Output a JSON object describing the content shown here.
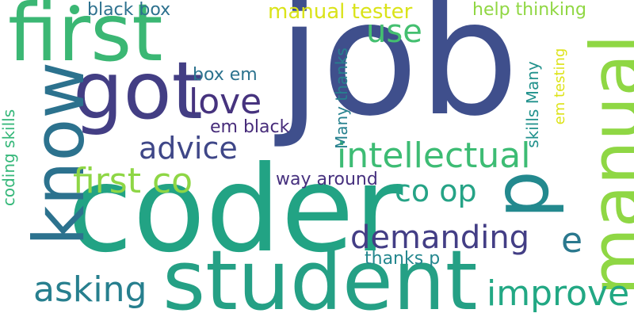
{
  "word_cloud": {
    "words": [
      {
        "id": "job",
        "text": "job",
        "color": "#3f4f8c"
      },
      {
        "id": "coder",
        "text": "coder",
        "color": "#22a384"
      },
      {
        "id": "student",
        "text": "student",
        "color": "#25a085"
      },
      {
        "id": "first",
        "text": "first",
        "color": "#3bb774"
      },
      {
        "id": "got",
        "text": "got",
        "color": "#433e84"
      },
      {
        "id": "know",
        "text": "know",
        "color": "#2c728e"
      },
      {
        "id": "manual",
        "text": "manual",
        "color": "#8fd744"
      },
      {
        "id": "p",
        "text": "p",
        "color": "#23898e"
      },
      {
        "id": "love",
        "text": "love",
        "color": "#46337e"
      },
      {
        "id": "advice",
        "text": "advice",
        "color": "#3f4788"
      },
      {
        "id": "intellectual",
        "text": "intellectual",
        "color": "#3dbc74"
      },
      {
        "id": "first-co",
        "text": "first co",
        "color": "#8ed645"
      },
      {
        "id": "co-op",
        "text": "co op",
        "color": "#25a386"
      },
      {
        "id": "demanding",
        "text": "demanding",
        "color": "#433e85"
      },
      {
        "id": "asking",
        "text": "asking",
        "color": "#277f8e"
      },
      {
        "id": "improve",
        "text": "improve",
        "color": "#22a884"
      },
      {
        "id": "e",
        "text": "e",
        "color": "#2a788e"
      },
      {
        "id": "use",
        "text": "use",
        "color": "#44bf70"
      },
      {
        "id": "manual-tester",
        "text": "manual tester",
        "color": "#dae319"
      },
      {
        "id": "help-thinking",
        "text": "help thinking",
        "color": "#90d743"
      },
      {
        "id": "black-box-top",
        "text": "black box",
        "color": "#2d718e"
      },
      {
        "id": "box-em",
        "text": "box em",
        "color": "#2c738e"
      },
      {
        "id": "em-black",
        "text": "em black",
        "color": "#472c7a"
      },
      {
        "id": "way-around",
        "text": "way around",
        "color": "#46307e"
      },
      {
        "id": "thanks-p",
        "text": "thanks p",
        "color": "#24878e"
      },
      {
        "id": "many-thanks",
        "text": "Many thanks",
        "color": "#26818e"
      },
      {
        "id": "skills-many",
        "text": "skills Many",
        "color": "#21918c"
      },
      {
        "id": "em-testing",
        "text": "em testing",
        "color": "#dde318"
      },
      {
        "id": "coding-skills",
        "text": "coding skills",
        "color": "#35b779"
      }
    ]
  }
}
